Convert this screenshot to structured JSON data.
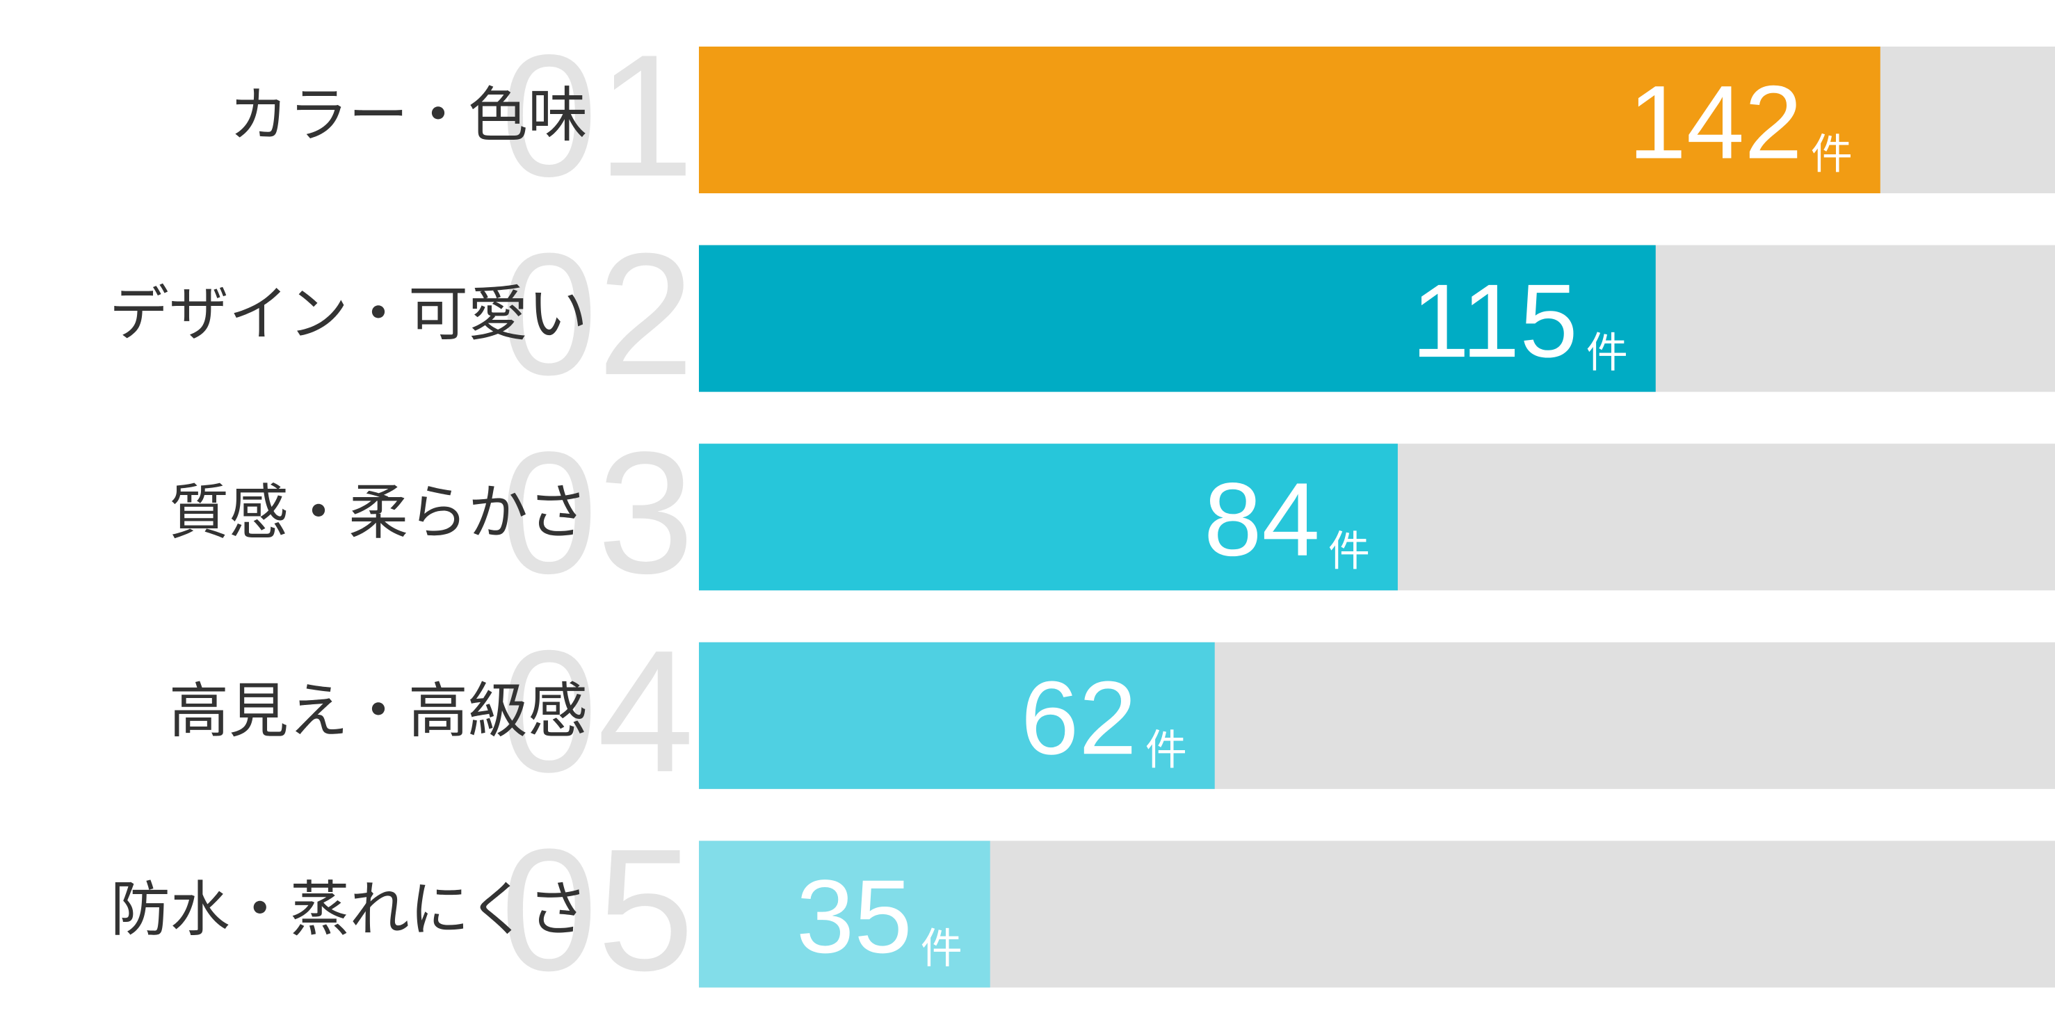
{
  "chart_data": {
    "type": "bar",
    "orientation": "horizontal",
    "categories": [
      "カラー・色味",
      "デザイン・可愛い",
      "質感・柔らかさ",
      "高見え・高級感",
      "防水・蒸れにくさ"
    ],
    "ranks": [
      "01",
      "02",
      "03",
      "04",
      "05"
    ],
    "values": [
      142,
      115,
      84,
      62,
      35
    ],
    "unit": "件",
    "colors": [
      "#f29c13",
      "#00acc4",
      "#27c6da",
      "#4fd0e2",
      "#82dde9"
    ],
    "track_color": "#e0e0e0",
    "xlim": [
      0,
      163
    ]
  }
}
